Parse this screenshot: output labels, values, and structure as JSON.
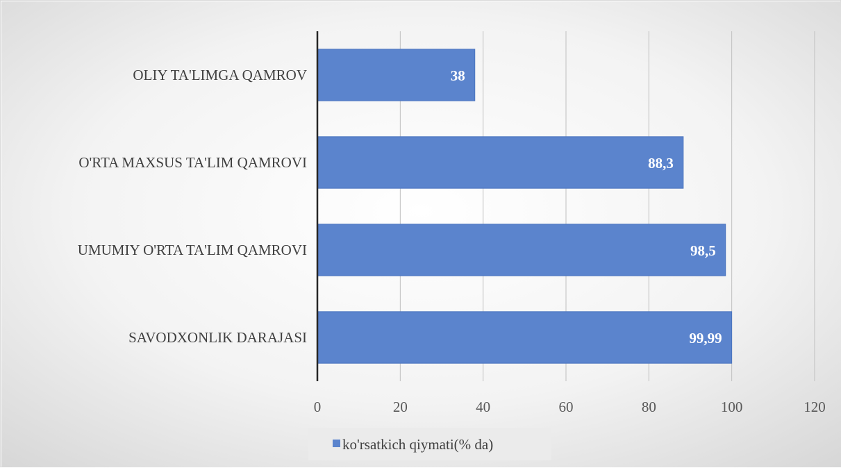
{
  "chart_data": {
    "type": "bar",
    "orientation": "horizontal",
    "categories": [
      "OLIY TA'LIMGA QAMROV",
      "O'RTA MAXSUS TA'LIM QAMROVI",
      "UMUMIY O'RTA TA'LIM QAMROVI",
      "SAVODXONLIK DARAJASI"
    ],
    "series": [
      {
        "name": "ko'rsatkich qiymati(% da)",
        "values": [
          38,
          88.3,
          98.5,
          99.99
        ],
        "data_labels": [
          "38",
          "88,3",
          "98,5",
          "99,99"
        ]
      }
    ],
    "xlim": [
      0,
      120
    ],
    "x_ticks": [
      0,
      20,
      40,
      60,
      80,
      100,
      120
    ],
    "grid": "vertical",
    "legend": "bottom-center",
    "colors": {
      "bar": "#5b84cd",
      "bar_edge": "#4a74bf",
      "grid": "#bfbfbf",
      "axis": "#262626",
      "background_light": "#ffffff",
      "background_dark": "#d9d9d9"
    }
  }
}
